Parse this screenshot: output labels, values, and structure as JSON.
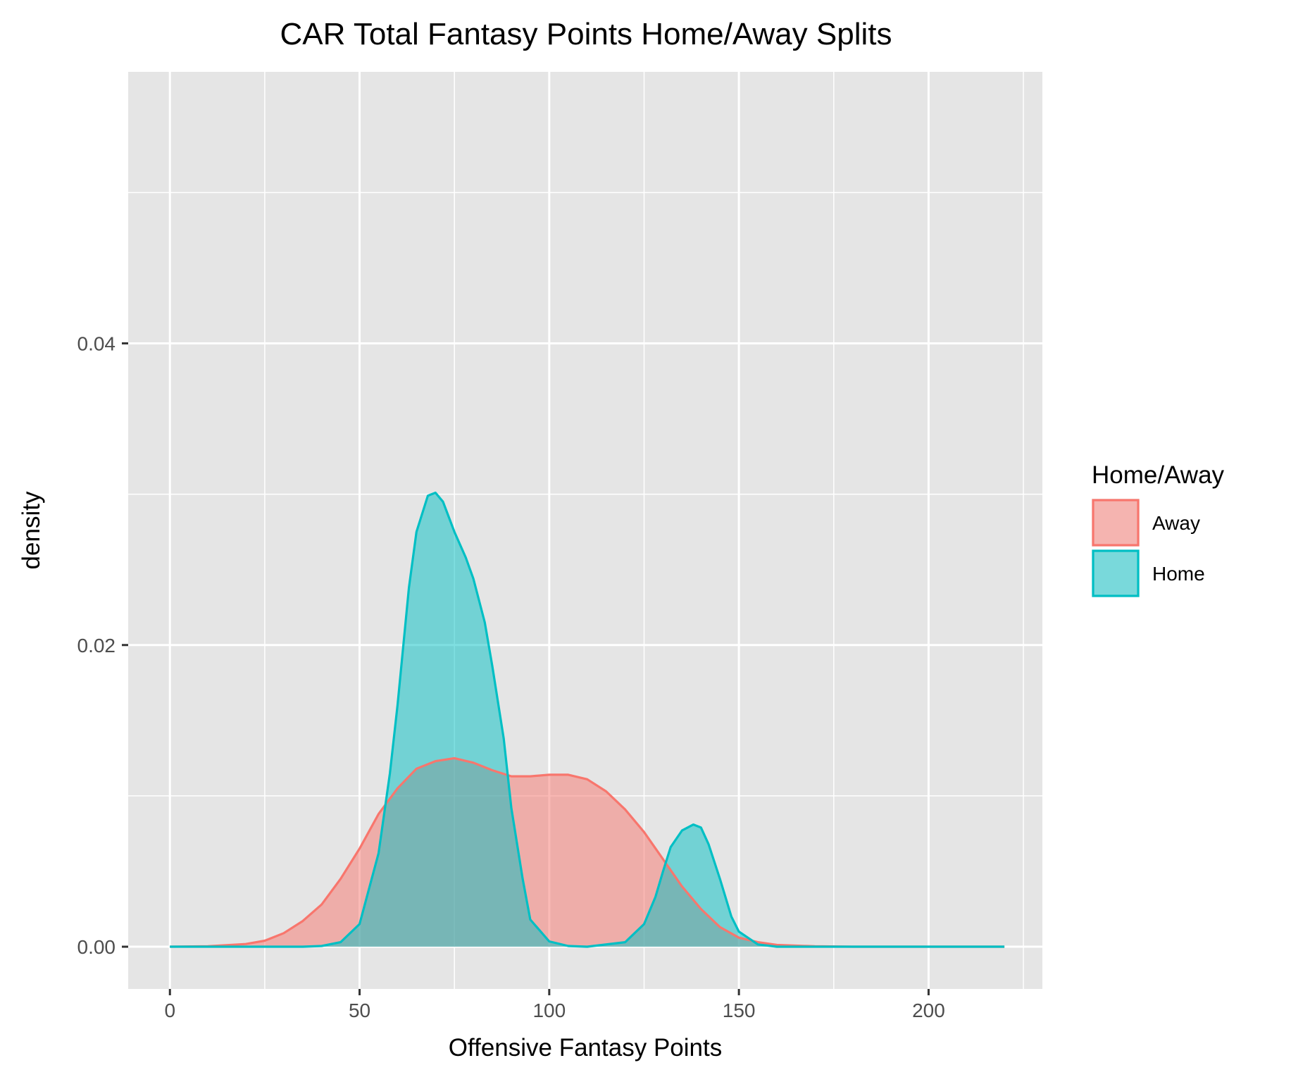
{
  "chart_data": {
    "type": "area",
    "title": "CAR Total Fantasy Points Home/Away Splits",
    "xlabel": "Offensive Fantasy Points",
    "ylabel": "density",
    "xlim": [
      -11,
      230
    ],
    "ylim": [
      -0.0028,
      0.058
    ],
    "x_ticks": [
      0,
      50,
      100,
      150,
      200
    ],
    "x_tick_labels": [
      "0",
      "50",
      "100",
      "150",
      "200"
    ],
    "x_minor_ticks": [
      25,
      75,
      125,
      175,
      225
    ],
    "y_ticks": [
      0.0,
      0.02,
      0.04
    ],
    "y_tick_labels": [
      "0.00",
      "0.02",
      "0.04"
    ],
    "y_minor_ticks": [
      0.01,
      0.03,
      0.05
    ],
    "grid": true,
    "legend": {
      "title": "Home/Away",
      "position": "right"
    },
    "series": [
      {
        "name": "Away",
        "fill": "#F8766D",
        "line": "#F8766D",
        "x": [
          0,
          10,
          20,
          25,
          30,
          35,
          40,
          45,
          50,
          55,
          60,
          65,
          70,
          75,
          80,
          85,
          90,
          95,
          100,
          105,
          110,
          115,
          120,
          125,
          130,
          135,
          140,
          145,
          150,
          155,
          160,
          170,
          180,
          190,
          200,
          220
        ],
        "y": [
          0,
          3e-05,
          0.00018,
          0.0004,
          0.0009,
          0.0017,
          0.0028,
          0.0045,
          0.0065,
          0.0088,
          0.0105,
          0.0118,
          0.0123,
          0.0125,
          0.0122,
          0.0117,
          0.0113,
          0.0113,
          0.0114,
          0.0114,
          0.0111,
          0.0103,
          0.0091,
          0.0076,
          0.0058,
          0.004,
          0.0025,
          0.0013,
          0.0006,
          0.0003,
          0.00012,
          3e-05,
          0,
          0,
          0,
          0
        ]
      },
      {
        "name": "Home",
        "fill": "#00BFC4",
        "line": "#00BFC4",
        "x": [
          0,
          35,
          40,
          45,
          50,
          55,
          58,
          60,
          63,
          65,
          68,
          70,
          72,
          75,
          78,
          80,
          83,
          85,
          88,
          90,
          93,
          95,
          100,
          105,
          110,
          120,
          125,
          128,
          130,
          132,
          135,
          138,
          140,
          142,
          145,
          148,
          150,
          155,
          160,
          170,
          220
        ],
        "y": [
          0,
          0,
          5e-05,
          0.0003,
          0.0015,
          0.0062,
          0.0115,
          0.016,
          0.0238,
          0.0275,
          0.0299,
          0.0301,
          0.0295,
          0.0275,
          0.0258,
          0.0244,
          0.0215,
          0.0186,
          0.0138,
          0.0092,
          0.0045,
          0.0018,
          0.00035,
          5e-05,
          0,
          0.0003,
          0.0015,
          0.0033,
          0.005,
          0.0066,
          0.0077,
          0.0081,
          0.0079,
          0.0068,
          0.0045,
          0.002,
          0.001,
          0.00015,
          0,
          0,
          0
        ]
      }
    ]
  }
}
